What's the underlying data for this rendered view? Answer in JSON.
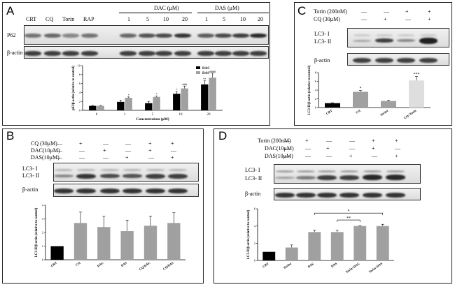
{
  "panelA": {
    "label": "A",
    "lanes": [
      "CRT",
      "CQ",
      "Torin",
      "RAP",
      "1",
      "5",
      "10",
      "20",
      "1",
      "5",
      "10",
      "20"
    ],
    "dac_header": "DAC (μM)",
    "das_header": "DAS (μM)",
    "blot_labels": [
      "P62",
      "β-actin"
    ]
  },
  "panelB": {
    "label": "B",
    "conditions": [
      {
        "name": "CQ (30μM)",
        "signs": [
          "—",
          "+",
          "—",
          "—",
          "+",
          "+"
        ]
      },
      {
        "name": "DAC(10μM)",
        "signs": [
          "—",
          "—",
          "+",
          "—",
          "+",
          "—"
        ]
      },
      {
        "name": "DAS(10μM)",
        "signs": [
          "—",
          "—",
          "—",
          "+",
          "—",
          "+"
        ]
      }
    ],
    "blot_labels": [
      "LC3- I",
      "LC3- II",
      "β-actin"
    ]
  },
  "panelC": {
    "label": "C",
    "conditions": [
      {
        "name": "Torin (200nM)",
        "signs": [
          "—",
          "—",
          "+",
          "+"
        ]
      },
      {
        "name": "CQ (30μM)",
        "signs": [
          "—",
          "+",
          "—",
          "+"
        ]
      }
    ],
    "blot_labels": [
      "LC3- I",
      "LC3- II",
      "β-actin"
    ]
  },
  "panelD": {
    "label": "D",
    "conditions": [
      {
        "name": "Torin (200nM)",
        "signs": [
          "—",
          "+",
          "—",
          "—",
          "+",
          "+"
        ]
      },
      {
        "name": "DAC(10μM)",
        "signs": [
          "—",
          "—",
          "+",
          "—",
          "+",
          "—"
        ]
      },
      {
        "name": "DAS(10μM)",
        "signs": [
          "—",
          "—",
          "—",
          "+",
          "—",
          "+"
        ]
      }
    ],
    "blot_labels": [
      "LC3- I",
      "LC3- II",
      "β-actin"
    ]
  },
  "chart_data": [
    {
      "id": "A",
      "type": "bar",
      "ylabel": "p62/β-actin (relative to control)",
      "xlabel": "Concentration (μM)",
      "categories": [
        "0",
        "1",
        "5",
        "10",
        "20"
      ],
      "series": [
        {
          "name": "DAC",
          "color": "#000000",
          "values": [
            1.0,
            1.9,
            1.6,
            3.7,
            5.8
          ],
          "errors": [
            0.1,
            0.4,
            0.4,
            0.5,
            0.8
          ],
          "sig": [
            "",
            "",
            "",
            "*",
            "**"
          ]
        },
        {
          "name": "DAS",
          "color": "#a0a0a0",
          "values": [
            1.0,
            2.8,
            3.0,
            4.9,
            7.3
          ],
          "errors": [
            0.1,
            0.2,
            0.2,
            0.5,
            1.0
          ],
          "sig": [
            "",
            "*",
            "*",
            "###",
            "####"
          ]
        }
      ],
      "ylim": [
        0,
        10
      ],
      "yticks": [
        "0",
        "2",
        "4",
        "6",
        "8",
        "10"
      ]
    },
    {
      "id": "B",
      "type": "bar",
      "ylabel": "LC3-II/β-actin (relative to control)",
      "categories": [
        "CRT",
        "CQ",
        "DAC",
        "DAS",
        "CQ/DAC",
        "CQ/DAS"
      ],
      "values": [
        1.0,
        2.7,
        2.4,
        2.1,
        2.5,
        2.7
      ],
      "errors": [
        0.0,
        0.8,
        0.8,
        0.8,
        0.7,
        0.75
      ],
      "colors": [
        "#000000",
        "#a0a0a0",
        "#a0a0a0",
        "#a0a0a0",
        "#a0a0a0",
        "#a0a0a0"
      ],
      "ylim": [
        0,
        4
      ],
      "yticks": [
        "0",
        "1",
        "2",
        "3",
        "4"
      ]
    },
    {
      "id": "C",
      "type": "bar",
      "ylabel": "LC3-II/β-actin (relative to control)",
      "categories": [
        "CRT",
        "CQ",
        "Torin1",
        "CQ+Torin"
      ],
      "values": [
        1.0,
        3.6,
        1.5,
        6.2
      ],
      "errors": [
        0.1,
        0.3,
        0.2,
        0.9
      ],
      "sig": [
        "",
        "*",
        "",
        "***"
      ],
      "colors": [
        "#000000",
        "#a0a0a0",
        "#a0a0a0",
        "#dedede"
      ],
      "ylim": [
        0,
        8
      ],
      "yticks": [
        "0",
        "2",
        "4",
        "6",
        "8"
      ]
    },
    {
      "id": "D",
      "type": "bar",
      "ylabel": "LC3-II/β-actin (relative to control)",
      "categories": [
        "CRT",
        "Torin1",
        "DAC",
        "DAS",
        "Torin+DAC",
        "Torin+DAS"
      ],
      "values": [
        1.0,
        1.5,
        3.3,
        3.3,
        4.0,
        4.0
      ],
      "errors": [
        0.0,
        0.3,
        0.2,
        0.2,
        0.05,
        0.2
      ],
      "colors": [
        "#000000",
        "#a0a0a0",
        "#a0a0a0",
        "#a0a0a0",
        "#a0a0a0",
        "#a0a0a0"
      ],
      "brackets": [
        {
          "from": 3,
          "to": 4,
          "label": "**"
        },
        {
          "from": 2,
          "to": 5,
          "label": "*"
        }
      ],
      "ylim": [
        0,
        6
      ],
      "yticks": [
        "0",
        "2",
        "4",
        "6"
      ]
    }
  ]
}
